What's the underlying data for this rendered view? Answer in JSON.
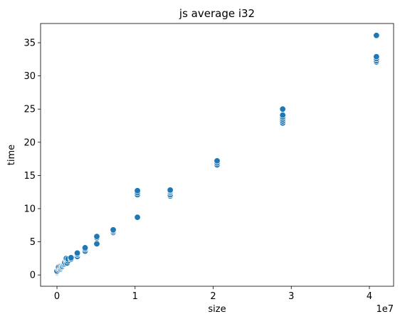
{
  "chart_data": {
    "type": "scatter",
    "title": "js average i32",
    "xlabel": "size",
    "ylabel": "time",
    "x_offset_label": "1e7",
    "xlim": [
      -2100000,
      43100000
    ],
    "ylim": [
      -1.7,
      37.9
    ],
    "x_ticks": [
      0,
      10000000,
      20000000,
      30000000,
      40000000
    ],
    "x_tick_labels": [
      "0",
      "1",
      "2",
      "3",
      "4"
    ],
    "y_ticks": [
      0,
      5,
      10,
      15,
      20,
      25,
      30,
      35
    ],
    "y_tick_labels": [
      "0",
      "5",
      "10",
      "15",
      "20",
      "25",
      "30",
      "35"
    ],
    "marker_color": "#1f77b4",
    "series": [
      {
        "x": [
          0,
          0,
          0,
          0,
          200000,
          200000,
          200000,
          400000,
          400000,
          400000,
          600000,
          600000,
          700000,
          800000,
          900000,
          1000000,
          1000000,
          1200000,
          1200000,
          1200000,
          1300000,
          1400000,
          1400000,
          1800000,
          1800000,
          2600000,
          2600000,
          2600000,
          3600000,
          3600000,
          3600000,
          5100000,
          5100000,
          5100000,
          7200000,
          7200000,
          7200000,
          10300000,
          10300000,
          10300000,
          10300000,
          14500000,
          14500000,
          14500000,
          14500000,
          14500000,
          20500000,
          20500000,
          20500000,
          28900000,
          28900000,
          28900000,
          28900000,
          28900000,
          28900000,
          40900000,
          40900000,
          40900000,
          40900000,
          40900000
        ],
        "y": [
          0.3,
          0.4,
          0.5,
          0.6,
          0.8,
          1.0,
          1.2,
          0.9,
          1.1,
          1.3,
          1.2,
          1.4,
          1.3,
          1.5,
          1.6,
          1.7,
          1.9,
          2.0,
          2.3,
          2.5,
          1.8,
          2.1,
          2.4,
          2.4,
          2.6,
          2.8,
          3.1,
          3.3,
          3.6,
          3.9,
          4.1,
          4.7,
          5.6,
          5.8,
          6.4,
          6.6,
          6.8,
          8.7,
          12.1,
          12.4,
          12.7,
          11.9,
          12.1,
          12.4,
          12.6,
          12.8,
          16.6,
          16.9,
          17.2,
          22.9,
          23.2,
          23.5,
          23.8,
          24.1,
          25.0,
          32.1,
          32.3,
          32.6,
          32.9,
          36.1
        ]
      }
    ]
  }
}
